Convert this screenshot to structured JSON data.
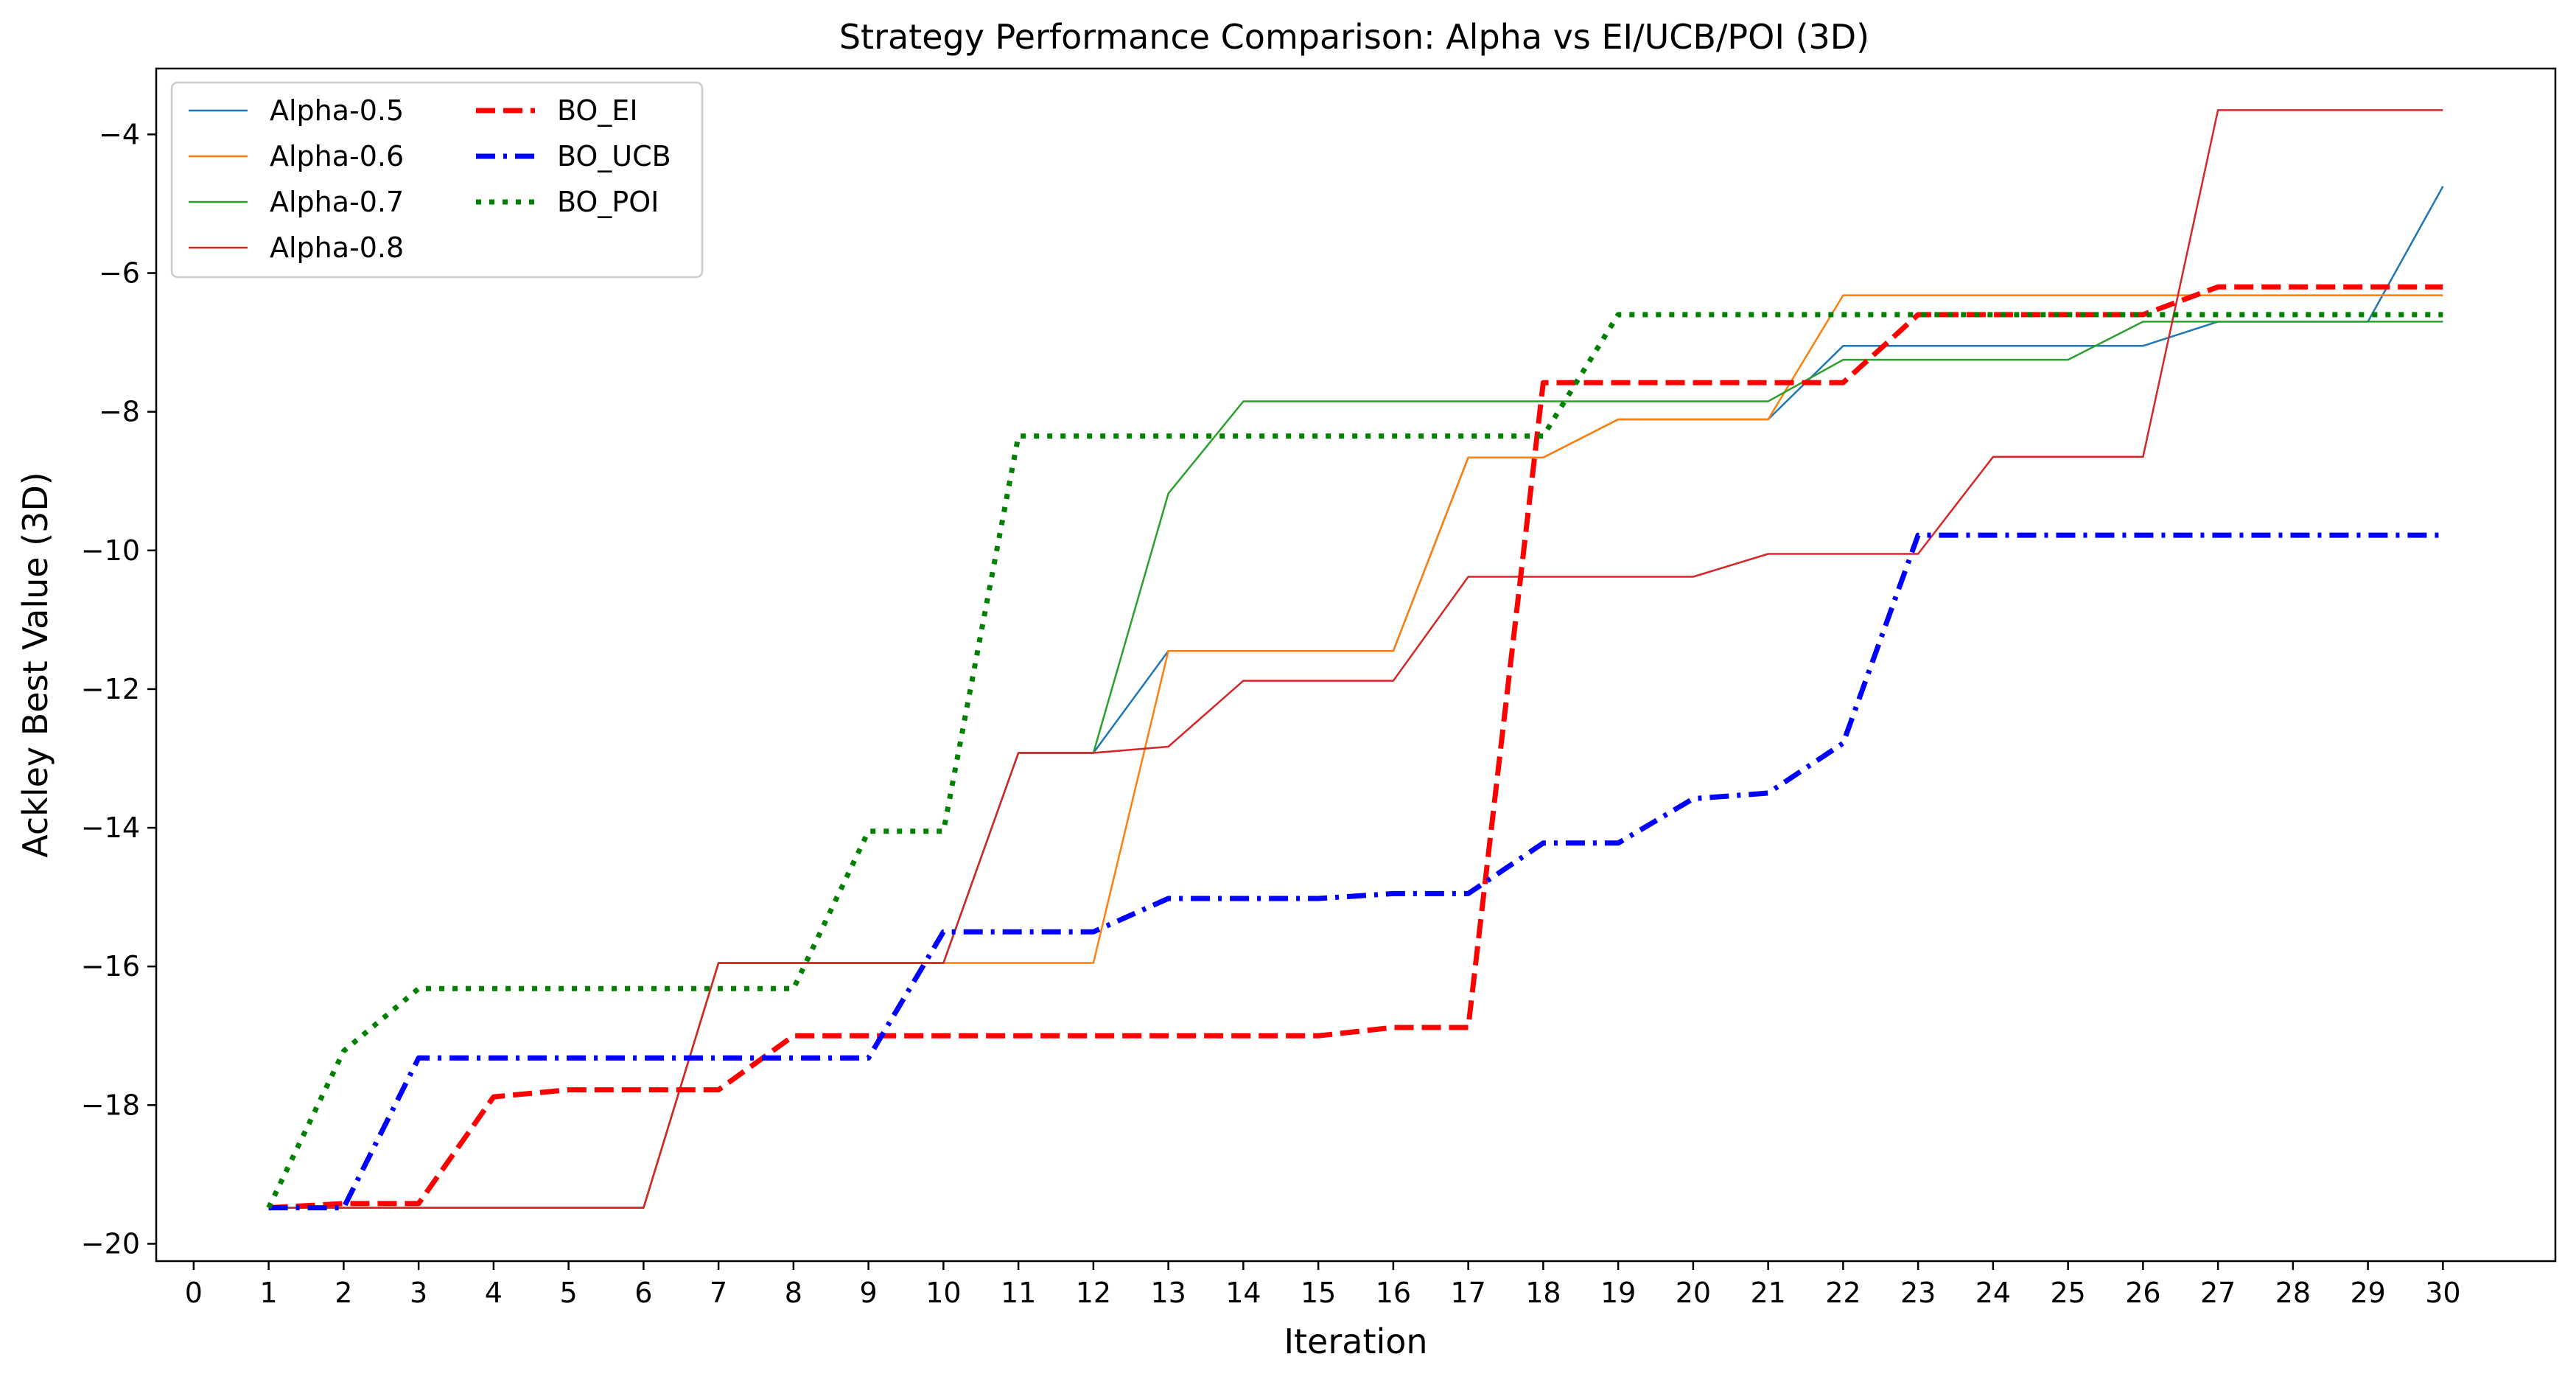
{
  "chart_data": {
    "type": "line",
    "title": "Strategy Performance Comparison: Alpha vs EI/UCB/POI (3D)",
    "xlabel": "Iteration",
    "ylabel": "Ackley Best Value (3D)",
    "xlim": [
      -0.5,
      31.5
    ],
    "ylim": [
      -20.25,
      -3.05
    ],
    "xticks": [
      0,
      1,
      2,
      3,
      4,
      5,
      6,
      7,
      8,
      9,
      10,
      11,
      12,
      13,
      14,
      15,
      16,
      17,
      18,
      19,
      20,
      21,
      22,
      23,
      24,
      25,
      26,
      27,
      28,
      29,
      30
    ],
    "yticks": [
      -20,
      -18,
      -16,
      -14,
      -12,
      -10,
      -8,
      -6,
      -4
    ],
    "grid": false,
    "legend_placement": "top-left",
    "x": [
      1,
      2,
      3,
      4,
      5,
      6,
      7,
      8,
      9,
      10,
      11,
      12,
      13,
      14,
      15,
      16,
      17,
      18,
      19,
      20,
      21,
      22,
      23,
      24,
      25,
      26,
      27,
      28,
      29,
      30
    ],
    "series": [
      {
        "name": "Alpha-0.5",
        "color": "#1f77b4",
        "style": "solid",
        "width": 2.5,
        "values": [
          -19.48,
          -19.48,
          -19.48,
          -19.48,
          -19.48,
          -19.48,
          -15.95,
          -15.95,
          -15.95,
          -15.95,
          -12.92,
          -12.92,
          -11.45,
          -11.45,
          -11.45,
          -11.45,
          -8.66,
          -8.66,
          -8.11,
          -8.11,
          -8.11,
          -7.05,
          -7.05,
          -7.05,
          -7.05,
          -7.05,
          -6.7,
          -6.7,
          -6.7,
          -4.75
        ]
      },
      {
        "name": "Alpha-0.6",
        "color": "#ff7f0e",
        "style": "solid",
        "width": 2.5,
        "values": [
          -19.48,
          -19.48,
          -19.48,
          -19.48,
          -19.48,
          -19.48,
          -15.95,
          -15.95,
          -15.95,
          -15.95,
          -15.95,
          -15.95,
          -11.45,
          -11.45,
          -11.45,
          -11.45,
          -8.66,
          -8.66,
          -8.11,
          -8.11,
          -8.11,
          -6.32,
          -6.32,
          -6.32,
          -6.32,
          -6.32,
          -6.32,
          -6.32,
          -6.32,
          -6.32
        ]
      },
      {
        "name": "Alpha-0.7",
        "color": "#2ca02c",
        "style": "solid",
        "width": 2.5,
        "values": [
          -19.48,
          -19.48,
          -19.48,
          -19.48,
          -19.48,
          -19.48,
          -15.95,
          -15.95,
          -15.95,
          -15.95,
          -12.92,
          -12.92,
          -9.18,
          -7.85,
          -7.85,
          -7.85,
          -7.85,
          -7.85,
          -7.85,
          -7.85,
          -7.85,
          -7.25,
          -7.25,
          -7.25,
          -7.25,
          -6.7,
          -6.7,
          -6.7,
          -6.7,
          -6.7
        ]
      },
      {
        "name": "Alpha-0.8",
        "color": "#d62728",
        "style": "solid",
        "width": 2.5,
        "values": [
          -19.48,
          -19.48,
          -19.48,
          -19.48,
          -19.48,
          -19.48,
          -15.95,
          -15.95,
          -15.95,
          -15.95,
          -12.92,
          -12.92,
          -12.83,
          -11.88,
          -11.88,
          -11.88,
          -10.38,
          -10.38,
          -10.38,
          -10.38,
          -10.05,
          -10.05,
          -10.05,
          -8.65,
          -8.65,
          -8.65,
          -3.65,
          -3.65,
          -3.65,
          -3.65
        ]
      },
      {
        "name": "BO_EI",
        "color": "#ff0000",
        "style": "dashed",
        "width": 7,
        "values": [
          -19.48,
          -19.42,
          -19.42,
          -17.88,
          -17.78,
          -17.78,
          -17.78,
          -17.0,
          -17.0,
          -17.0,
          -17.0,
          -17.0,
          -17.0,
          -17.0,
          -17.0,
          -16.88,
          -16.88,
          -7.58,
          -7.58,
          -7.58,
          -7.58,
          -7.58,
          -6.6,
          -6.6,
          -6.6,
          -6.6,
          -6.2,
          -6.2,
          -6.2,
          -6.2
        ]
      },
      {
        "name": "BO_UCB",
        "color": "#0000ff",
        "style": "dashdot",
        "width": 7,
        "values": [
          -19.48,
          -19.48,
          -17.32,
          -17.32,
          -17.32,
          -17.32,
          -17.32,
          -17.32,
          -17.32,
          -15.5,
          -15.5,
          -15.5,
          -15.02,
          -15.02,
          -15.02,
          -14.95,
          -14.95,
          -14.22,
          -14.22,
          -13.58,
          -13.5,
          -12.78,
          -9.78,
          -9.78,
          -9.78,
          -9.78,
          -9.78,
          -9.78,
          -9.78,
          -9.78
        ]
      },
      {
        "name": "BO_POI",
        "color": "#008000",
        "style": "dotted",
        "width": 7,
        "values": [
          -19.48,
          -17.22,
          -16.32,
          -16.32,
          -16.32,
          -16.32,
          -16.32,
          -16.32,
          -14.05,
          -14.05,
          -8.35,
          -8.35,
          -8.35,
          -8.35,
          -8.35,
          -8.35,
          -8.35,
          -8.35,
          -6.6,
          -6.6,
          -6.6,
          -6.6,
          -6.6,
          -6.6,
          -6.6,
          -6.6,
          -6.6,
          -6.6,
          -6.6,
          -6.6
        ]
      }
    ]
  }
}
